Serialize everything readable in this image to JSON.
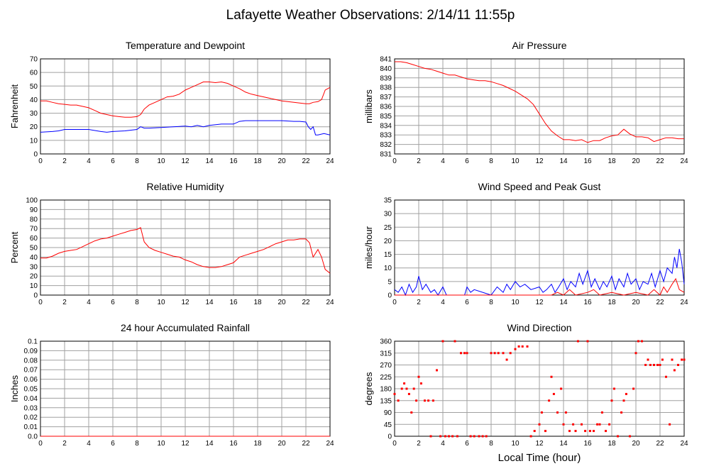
{
  "page": {
    "title": "Lafayette Weather Observations: 2/14/11 11:55p",
    "xlabel": "Local Time (hour)"
  },
  "colors": {
    "primary": "#ff0000",
    "secondary": "#0000ff",
    "grid": "#a0a0a0",
    "axis": "#000000"
  },
  "chart_data": [
    {
      "type": "line",
      "title": "Temperature and Dewpoint",
      "xlabel": "",
      "ylabel": "Fahrenheit",
      "xlim": [
        0,
        24
      ],
      "ylim": [
        0,
        70
      ],
      "xticks": [
        0,
        2,
        4,
        6,
        8,
        10,
        12,
        14,
        16,
        18,
        20,
        22,
        24
      ],
      "yticks": [
        0,
        10,
        20,
        30,
        40,
        50,
        60,
        70
      ],
      "grid": true,
      "series": [
        {
          "color": "#ff0000",
          "x": [
            0,
            0.5,
            1,
            1.5,
            2,
            2.5,
            3,
            3.5,
            4,
            4.5,
            5,
            5.5,
            6,
            6.5,
            7,
            7.5,
            8,
            8.3,
            8.6,
            9,
            9.5,
            10,
            10.5,
            11,
            11.5,
            12,
            12.5,
            13,
            13.5,
            14,
            14.5,
            15,
            15.5,
            16,
            16.5,
            17,
            17.5,
            18,
            18.5,
            19,
            19.5,
            20,
            20.5,
            21,
            21.5,
            22,
            22.3,
            22.6,
            23,
            23.3,
            23.6,
            24
          ],
          "y": [
            39,
            39,
            38,
            37,
            36.5,
            36,
            36,
            35,
            34,
            32,
            30,
            29,
            28,
            27.5,
            27,
            27,
            27.5,
            29,
            33,
            36,
            38,
            40,
            42,
            42.5,
            44,
            47,
            49,
            51,
            53,
            53,
            52.5,
            53,
            52,
            50,
            48,
            45.5,
            44,
            43,
            42,
            41,
            40,
            39,
            38.5,
            38,
            37.5,
            37,
            37,
            38,
            38.5,
            40,
            47,
            49
          ]
        },
        {
          "color": "#0000ff",
          "x": [
            0,
            1,
            1.5,
            2,
            3,
            4,
            5,
            5.5,
            6,
            7,
            8,
            8.3,
            8.6,
            9,
            10,
            11,
            12,
            12.5,
            13,
            13.5,
            14,
            15,
            16,
            16.5,
            17,
            18,
            19,
            20,
            21,
            21.5,
            22,
            22.2,
            22.4,
            22.6,
            22.8,
            23,
            23.5,
            24
          ],
          "y": [
            16,
            16.5,
            17,
            18,
            18,
            18,
            16.5,
            16,
            16.5,
            17,
            18,
            20,
            19,
            19,
            19.5,
            20,
            20.5,
            20,
            21,
            20,
            21,
            22,
            22,
            24,
            24.5,
            24.5,
            24.5,
            24.5,
            24,
            24,
            23.5,
            20,
            18,
            20,
            14,
            14,
            15,
            14
          ]
        }
      ]
    },
    {
      "type": "line",
      "title": "Air Pressure",
      "xlabel": "",
      "ylabel": "millibars",
      "xlim": [
        0,
        24
      ],
      "ylim": [
        831,
        841
      ],
      "xticks": [
        0,
        2,
        4,
        6,
        8,
        10,
        12,
        14,
        16,
        18,
        20,
        22,
        24
      ],
      "yticks": [
        831,
        832,
        833,
        834,
        835,
        836,
        837,
        838,
        839,
        840,
        841
      ],
      "grid": true,
      "series": [
        {
          "color": "#ff0000",
          "x": [
            0,
            0.5,
            1,
            1.5,
            2,
            2.5,
            3,
            3.5,
            4,
            4.5,
            5,
            5.5,
            6,
            6.5,
            7,
            7.5,
            8,
            8.5,
            9,
            9.5,
            10,
            10.5,
            11,
            11.5,
            12,
            12.5,
            13,
            13.5,
            14,
            14.5,
            15,
            15.5,
            16,
            16.5,
            17,
            17.5,
            18,
            18.5,
            19,
            19.5,
            20,
            20.5,
            21,
            21.5,
            22,
            22.5,
            23,
            23.5,
            24
          ],
          "y": [
            840.7,
            840.7,
            840.6,
            840.4,
            840.2,
            840,
            839.9,
            839.7,
            839.5,
            839.3,
            839.3,
            839.1,
            838.9,
            838.8,
            838.7,
            838.7,
            838.6,
            838.4,
            838.2,
            837.9,
            837.6,
            837.2,
            836.8,
            836.2,
            835.2,
            834.2,
            833.4,
            832.9,
            832.5,
            832.5,
            832.4,
            832.5,
            832.2,
            832.4,
            832.4,
            832.7,
            832.9,
            833,
            833.6,
            833.1,
            832.8,
            832.8,
            832.7,
            832.3,
            832.5,
            832.7,
            832.7,
            832.6,
            832.6
          ]
        }
      ]
    },
    {
      "type": "line",
      "title": "Relative Humidity",
      "xlabel": "",
      "ylabel": "Percent",
      "xlim": [
        0,
        24
      ],
      "ylim": [
        0,
        100
      ],
      "xticks": [
        0,
        2,
        4,
        6,
        8,
        10,
        12,
        14,
        16,
        18,
        20,
        22,
        24
      ],
      "yticks": [
        0,
        10,
        20,
        30,
        40,
        50,
        60,
        70,
        80,
        90,
        100
      ],
      "grid": true,
      "series": [
        {
          "color": "#ff0000",
          "x": [
            0,
            0.5,
            1,
            1.5,
            2,
            2.5,
            3,
            3.5,
            4,
            4.5,
            5,
            5.5,
            6,
            6.5,
            7,
            7.5,
            8,
            8.3,
            8.6,
            9,
            9.5,
            10,
            10.5,
            11,
            11.5,
            12,
            12.5,
            13,
            13.5,
            14,
            14.5,
            15,
            15.5,
            16,
            16.5,
            17,
            17.5,
            18,
            18.5,
            19,
            19.5,
            20,
            20.5,
            21,
            21.5,
            22,
            22.3,
            22.6,
            23,
            23.3,
            23.6,
            24
          ],
          "y": [
            39,
            39,
            41,
            44,
            46,
            47,
            48,
            51,
            54,
            57,
            59,
            60,
            62,
            64,
            66,
            68,
            69,
            71,
            56,
            50,
            47,
            45,
            43,
            41,
            40,
            37,
            35,
            32,
            30,
            29,
            29,
            30,
            32,
            34,
            40,
            42,
            44,
            46,
            48,
            51,
            54,
            56,
            58,
            58,
            59,
            59,
            55,
            40,
            48,
            40,
            27,
            23
          ]
        }
      ]
    },
    {
      "type": "line",
      "title": "Wind Speed and Peak Gust",
      "xlabel": "",
      "ylabel": "miles/hour",
      "xlim": [
        0,
        24
      ],
      "ylim": [
        0,
        35
      ],
      "xticks": [
        0,
        2,
        4,
        6,
        8,
        10,
        12,
        14,
        16,
        18,
        20,
        22,
        24
      ],
      "yticks": [
        0,
        5,
        10,
        15,
        20,
        25,
        30,
        35
      ],
      "grid": true,
      "series": [
        {
          "color": "#0000ff",
          "x": [
            0,
            0.3,
            0.6,
            0.9,
            1.2,
            1.5,
            1.8,
            2,
            2.3,
            2.6,
            3,
            3.3,
            3.6,
            4,
            4.3,
            5.8,
            6,
            6.3,
            6.6,
            8,
            8.5,
            9,
            9.3,
            9.6,
            10,
            10.4,
            10.8,
            11.3,
            12,
            12.3,
            12.6,
            13,
            13.3,
            13.6,
            14,
            14.3,
            14.6,
            15,
            15.3,
            15.6,
            16,
            16.3,
            16.6,
            17,
            17.3,
            17.6,
            18,
            18.3,
            18.6,
            19,
            19.3,
            19.6,
            20,
            20.3,
            20.6,
            21,
            21.3,
            21.6,
            22,
            22.3,
            22.6,
            23,
            23.2,
            23.4,
            23.6,
            23.8,
            24
          ],
          "y": [
            2,
            1,
            3,
            0,
            4,
            1,
            3,
            7,
            2,
            4,
            1,
            2,
            0,
            3,
            0,
            0,
            3,
            1,
            2,
            0,
            3,
            1,
            4,
            2,
            5,
            3,
            4,
            2,
            3,
            1,
            2,
            4,
            1,
            3,
            6,
            2,
            5,
            3,
            8,
            4,
            9,
            3,
            6,
            2,
            5,
            3,
            7,
            2,
            6,
            3,
            8,
            4,
            6,
            2,
            5,
            4,
            8,
            3,
            9,
            5,
            10,
            8,
            14,
            10,
            17,
            12,
            4
          ]
        },
        {
          "color": "#ff0000",
          "x": [
            0,
            13,
            13.5,
            14,
            14.5,
            15,
            16,
            16.5,
            17,
            18,
            19,
            20,
            21,
            21.5,
            22,
            22.3,
            22.6,
            23,
            23.3,
            23.6,
            24
          ],
          "y": [
            0,
            0,
            1,
            0,
            2,
            0,
            1,
            2,
            0,
            1,
            0,
            1,
            0,
            2,
            0,
            3,
            1,
            4,
            6,
            2,
            1
          ]
        }
      ]
    },
    {
      "type": "line",
      "title": "24 hour Accumulated Rainfall",
      "xlabel": "",
      "ylabel": "Inches",
      "xlim": [
        0,
        24
      ],
      "ylim": [
        0,
        0.1
      ],
      "xticks": [
        0,
        2,
        4,
        6,
        8,
        10,
        12,
        14,
        16,
        18,
        20,
        22,
        24
      ],
      "yticks": [
        "0.0",
        "0.01",
        "0.02",
        "0.03",
        "0.04",
        "0.05",
        "0.06",
        "0.07",
        "0.08",
        "0.09",
        "0.1"
      ],
      "grid": true,
      "series": [
        {
          "color": "#ff0000",
          "x": [
            0,
            24
          ],
          "y": [
            0,
            0
          ]
        }
      ]
    },
    {
      "type": "scatter",
      "title": "Wind Direction",
      "xlabel": "Local Time (hour)",
      "ylabel": "degrees",
      "xlim": [
        0,
        24
      ],
      "ylim": [
        0,
        360
      ],
      "xticks": [
        0,
        2,
        4,
        6,
        8,
        10,
        12,
        14,
        16,
        18,
        20,
        22,
        24
      ],
      "yticks": [
        0,
        45,
        90,
        135,
        180,
        225,
        270,
        315,
        360
      ],
      "grid": true,
      "series": [
        {
          "color": "#ff0000",
          "x": [
            0,
            0.3,
            0.6,
            0.8,
            1,
            1.2,
            1.4,
            1.6,
            1.8,
            2,
            2.2,
            2.5,
            2.8,
            3,
            3.2,
            3.5,
            3.8,
            4,
            4.2,
            4.5,
            4.8,
            5,
            5.2,
            5.5,
            5.8,
            6,
            6.3,
            6.6,
            7,
            7.3,
            7.6,
            8,
            8.3,
            8.6,
            9,
            9.3,
            9.6,
            10,
            10.3,
            10.6,
            11,
            11.3,
            11.6,
            12,
            12.2,
            12.5,
            12.8,
            13,
            13.2,
            13.5,
            13.8,
            14,
            14.2,
            14.5,
            14.8,
            15,
            15.2,
            15.5,
            15.8,
            16,
            16.2,
            16.5,
            16.8,
            17,
            17.2,
            17.5,
            17.8,
            18,
            18.2,
            18.5,
            18.8,
            19,
            19.2,
            19.5,
            19.8,
            20,
            20.2,
            20.5,
            20.8,
            21,
            21.2,
            21.5,
            21.8,
            22,
            22.2,
            22.5,
            22.8,
            23,
            23.2,
            23.5,
            23.8,
            24
          ],
          "y": [
            160,
            135,
            180,
            200,
            180,
            160,
            90,
            180,
            135,
            225,
            200,
            135,
            135,
            0,
            135,
            250,
            0,
            360,
            0,
            0,
            0,
            360,
            0,
            315,
            315,
            315,
            0,
            0,
            0,
            0,
            0,
            315,
            315,
            315,
            315,
            290,
            315,
            330,
            340,
            340,
            340,
            0,
            20,
            45,
            90,
            20,
            135,
            225,
            160,
            90,
            180,
            45,
            90,
            20,
            45,
            20,
            360,
            45,
            20,
            360,
            20,
            20,
            45,
            45,
            90,
            20,
            45,
            135,
            180,
            0,
            90,
            135,
            160,
            0,
            180,
            315,
            360,
            360,
            270,
            290,
            270,
            270,
            270,
            270,
            290,
            225,
            45,
            290,
            250,
            270,
            290,
            290
          ]
        }
      ]
    }
  ]
}
